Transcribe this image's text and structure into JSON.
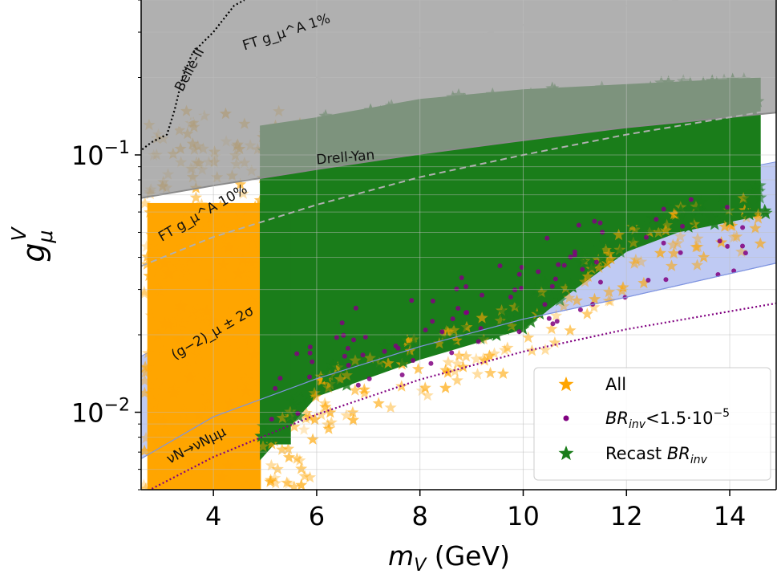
{
  "chart_data": {
    "type": "scatter",
    "title": "",
    "xlabel": "m_V (GeV)",
    "ylabel": "g_μ^V",
    "xscale": "linear",
    "yscale": "log",
    "xlim": [
      2.6,
      14.9
    ],
    "ylim": [
      0.005,
      0.4
    ],
    "x_ticks": [
      {
        "value": 4,
        "label": "4"
      },
      {
        "value": 6,
        "label": "6"
      },
      {
        "value": 8,
        "label": "8"
      },
      {
        "value": 10,
        "label": "10"
      },
      {
        "value": 12,
        "label": "12"
      },
      {
        "value": 14,
        "label": "14"
      }
    ],
    "y_ticks": [
      {
        "value": 0.1,
        "base": "10",
        "exp": "−1"
      },
      {
        "value": 0.01,
        "base": "10",
        "exp": "−2"
      }
    ],
    "grid": true,
    "legend_position": "lower-right",
    "colors": {
      "all": "#ffa500",
      "br_inv": "#800080",
      "recast": "#1a7d1a",
      "excluded_gray": "#9a9a9a",
      "g2_band": "#aab8ef",
      "nu_line": "#800080",
      "ft_line": "#b0b0b0"
    },
    "series": [
      {
        "name": "All",
        "marker": "star",
        "color": "#ffa500",
        "region": {
          "dense_x": [
            2.7,
            4.9
          ],
          "dense_y_low": 0.005,
          "dense_y_high": 0.065,
          "outer_x": [
            2.7,
            14.6
          ],
          "lower_y": [
            0.005,
            0.0055,
            0.0065,
            0.0085,
            0.011,
            0.0145,
            0.0185,
            0.023,
            0.028,
            0.032
          ],
          "upper_y": [
            0.13,
            0.14,
            0.15,
            0.16,
            0.175,
            0.19,
            0.2,
            0.2,
            0.2,
            0.2
          ]
        }
      },
      {
        "name": "BR_inv < 1.5·10^-5",
        "marker": "dot",
        "color": "#800080",
        "region": {
          "x": [
            5.0,
            14.5
          ],
          "y_low_at_x": [
            [
              5,
              0.0085
            ],
            [
              8,
              0.014
            ],
            [
              10,
              0.02
            ],
            [
              12,
              0.028
            ],
            [
              14.5,
              0.037
            ]
          ]
        }
      },
      {
        "name": "Recast BR_inv",
        "marker": "star",
        "color": "#1a7d1a",
        "region": {
          "x": [
            4.9,
            14.6
          ],
          "lower_y": [
            [
              4.9,
              0.0065
            ],
            [
              6,
              0.0115
            ],
            [
              8,
              0.016
            ],
            [
              10,
              0.021
            ],
            [
              11,
              0.03
            ],
            [
              12,
              0.042
            ],
            [
              13,
              0.05
            ],
            [
              14.6,
              0.058
            ]
          ],
          "upper_y": [
            [
              4.9,
              0.13
            ],
            [
              6,
              0.14
            ],
            [
              8,
              0.165
            ],
            [
              10,
              0.18
            ],
            [
              14.6,
              0.2
            ]
          ]
        }
      }
    ],
    "bands": [
      {
        "name": "Belle-II",
        "label": "Belle-II",
        "style": "black dotted",
        "points": [
          [
            2.62,
            0.105
          ],
          [
            2.8,
            0.112
          ],
          [
            3.1,
            0.12
          ],
          [
            3.25,
            0.15
          ],
          [
            3.4,
            0.2
          ],
          [
            3.6,
            0.25
          ],
          [
            4.0,
            0.3
          ],
          [
            4.4,
            0.38
          ],
          [
            4.6,
            0.4
          ]
        ]
      },
      {
        "name": "Drell-Yan",
        "label": "Drell-Yan",
        "style": "gray filled excluded above",
        "points": [
          [
            2.6,
            0.068
          ],
          [
            4,
            0.076
          ],
          [
            6,
            0.088
          ],
          [
            8,
            0.101
          ],
          [
            10,
            0.114
          ],
          [
            12,
            0.128
          ],
          [
            14.9,
            0.146
          ]
        ]
      },
      {
        "name": "FT 1%",
        "label": "FT g_μ^A 1%",
        "style": "gray dashed",
        "points": [
          [
            2.6,
            0.11
          ],
          [
            4,
            0.15
          ],
          [
            6,
            0.2
          ],
          [
            8,
            0.26
          ],
          [
            10,
            0.32
          ],
          [
            12,
            0.38
          ],
          [
            13,
            0.4
          ]
        ]
      },
      {
        "name": "FT 10%",
        "label": "FT g_μ^A 10%",
        "style": "gray dashed",
        "points": [
          [
            2.6,
            0.037
          ],
          [
            4,
            0.048
          ],
          [
            6,
            0.064
          ],
          [
            8,
            0.082
          ],
          [
            10,
            0.1
          ],
          [
            12,
            0.12
          ],
          [
            14.9,
            0.15
          ]
        ]
      },
      {
        "name": "(g-2)μ ±2σ",
        "label": "(g−2)_μ ± 2σ",
        "style": "blue band",
        "lower": [
          [
            2.6,
            0.0066
          ],
          [
            4,
            0.0096
          ],
          [
            6,
            0.0135
          ],
          [
            8,
            0.018
          ],
          [
            10,
            0.023
          ],
          [
            12,
            0.028
          ],
          [
            14.9,
            0.038
          ]
        ],
        "upper": [
          [
            2.6,
            0.0165
          ],
          [
            4,
            0.0235
          ],
          [
            6,
            0.034
          ],
          [
            8,
            0.046
          ],
          [
            10,
            0.06
          ],
          [
            12,
            0.073
          ],
          [
            14.9,
            0.094
          ]
        ]
      },
      {
        "name": "νN→νNμμ",
        "label": "νN→νNμμ",
        "style": "purple dotted",
        "points": [
          [
            2.6,
            0.0048
          ],
          [
            4,
            0.0067
          ],
          [
            6,
            0.0098
          ],
          [
            8,
            0.0134
          ],
          [
            10,
            0.0172
          ],
          [
            12,
            0.021
          ],
          [
            14.9,
            0.0265
          ]
        ]
      }
    ],
    "legend": [
      {
        "label": "All",
        "marker": "star",
        "color": "#ffa500"
      },
      {
        "label": "BR_inv < 1.5·10^-5",
        "marker": "dot",
        "color": "#800080"
      },
      {
        "label": "Recast BR_inv",
        "marker": "star",
        "color": "#1a7d1a"
      }
    ]
  }
}
